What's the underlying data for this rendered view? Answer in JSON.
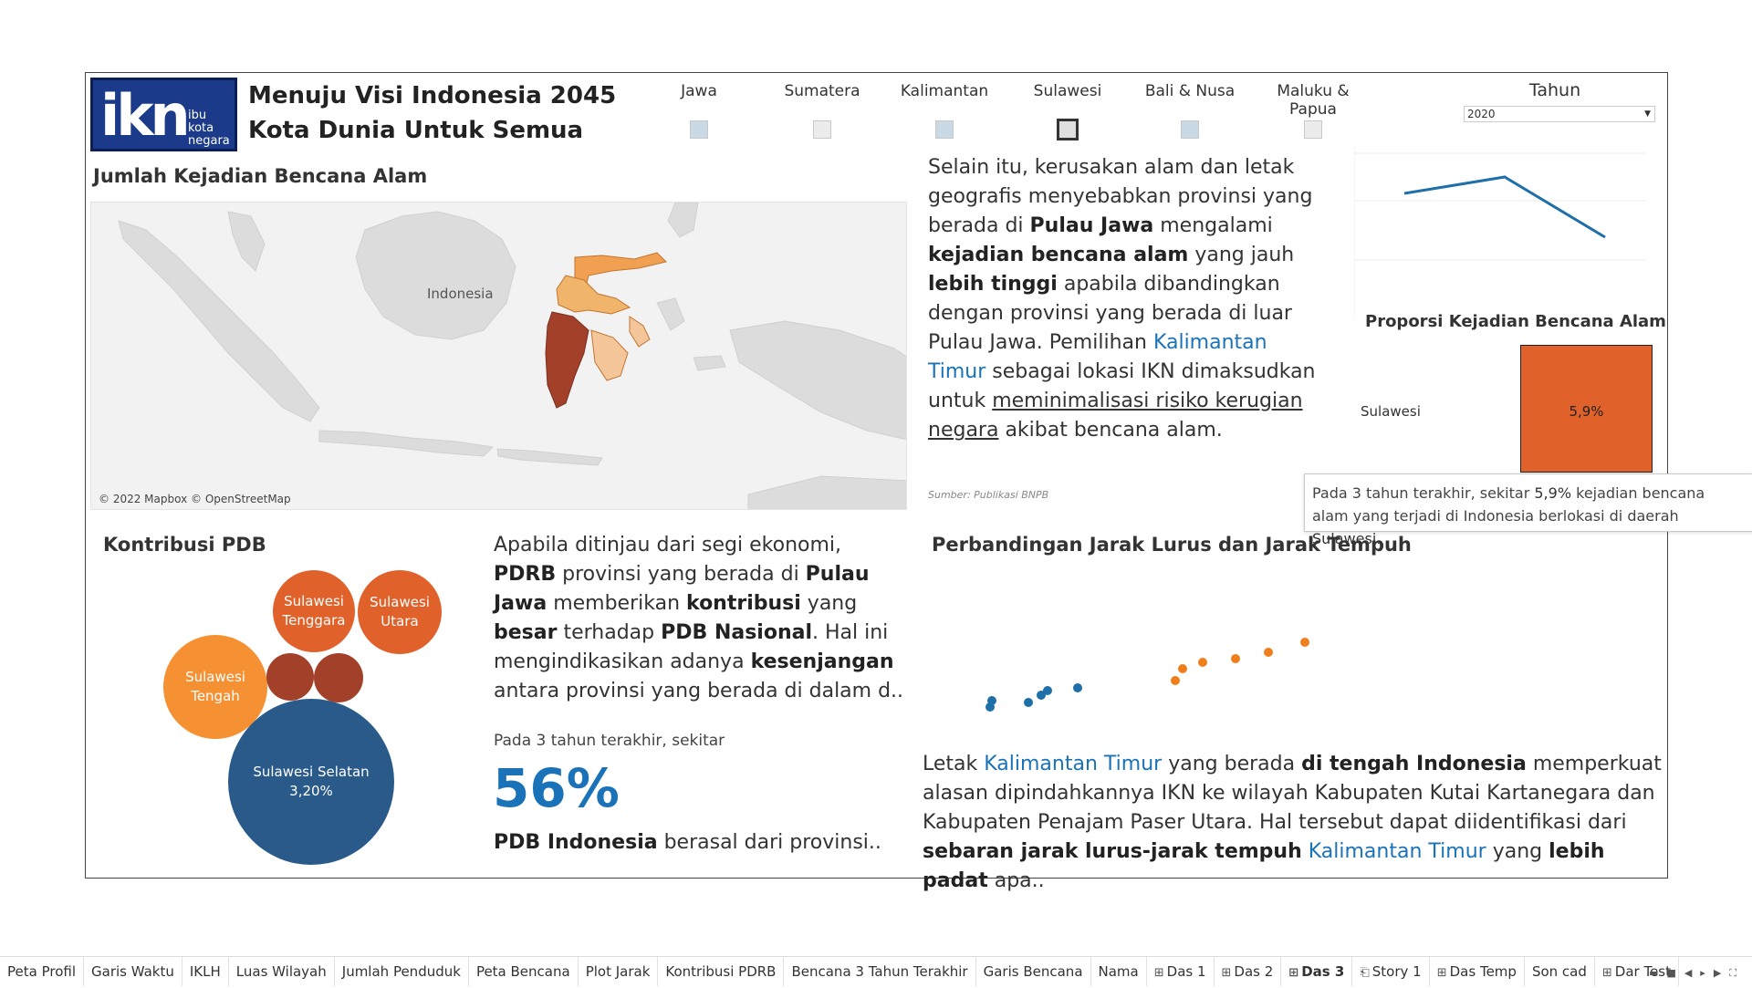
{
  "header": {
    "logo_big": "ikn",
    "logo_small": [
      "ibu",
      "kota",
      "negara"
    ],
    "title_line1": "Menuju Visi Indonesia 2045",
    "title_line2": "Kota Dunia Untuk Semua"
  },
  "filters": [
    {
      "label": "Jawa",
      "color": "#c9d9e6",
      "selected": false
    },
    {
      "label": "Sumatera",
      "color": "#ececec",
      "selected": false
    },
    {
      "label": "Kalimantan",
      "color": "#c9d9e6",
      "selected": false
    },
    {
      "label": "Sulawesi",
      "color": "#e0e0e0",
      "selected": true
    },
    {
      "label": "Bali & Nusa",
      "color": "#c9d9e6",
      "selected": false
    },
    {
      "label": "Maluku & Papua",
      "color": "#ececec",
      "selected": false
    }
  ],
  "tahun": {
    "label": "Tahun",
    "value": "2020"
  },
  "map_section": {
    "title": "Jumlah Kejadian Bencana Alam",
    "country_label": "Indonesia",
    "credit": "© 2022 Mapbox © OpenStreetMap"
  },
  "narrative1": {
    "p1": "Selain itu, kerusakan alam dan letak geografis menyebabkan provinsi yang berada di ",
    "b1": "Pulau Jawa",
    "p2": " mengalami ",
    "b2": "kejadian bencana alam",
    "p3": "  yang jauh ",
    "b3": "lebih tinggi",
    "p4": " apabila dibandingkan dengan provinsi yang berada di luar Pulau Jawa. Pemilihan ",
    "link1": "Kalimantan Timur",
    "p5": " sebagai lokasi IKN dimaksudkan untuk ",
    "u1": "meminimalisasi risiko kerugian negara",
    "p6": " akibat bencana alam."
  },
  "source": "Sumber: Publikasi BNPB",
  "proporsi": {
    "title": "Proporsi Kejadian Bencana Alam",
    "category": "Sulawesi",
    "value_label": "5,9%",
    "value": 5.9,
    "color": "#e0612a"
  },
  "tooltip": {
    "t1": "Pada 3 tahun terakhir, sekitar ",
    "b1": "5,9%",
    "t2": " kejadian bencana alam yang terjadi di Indonesia berlokasi di daerah ",
    "b2": "Sulawesi",
    "t3": "."
  },
  "pdb_section": {
    "title": "Kontribusi PDB",
    "bubbles": [
      {
        "label": "Sulawesi Tenggara",
        "color": "#e0612a"
      },
      {
        "label": "Sulawesi Utara",
        "color": "#e0612a"
      },
      {
        "label": "Sulawesi Tengah",
        "color": "#f59133"
      },
      {
        "label": "",
        "color": "#a3402a"
      },
      {
        "label": "",
        "color": "#a3402a"
      },
      {
        "label": "Sulawesi Selatan",
        "value": "3,20%",
        "color": "#2a5a8a"
      }
    ]
  },
  "narrative2": {
    "p1": "Apabila ditinjau dari segi ekonomi, ",
    "b1": "PDRB",
    "p2": " provinsi yang berada di ",
    "b2": "Pulau Jawa",
    "p3": " memberikan ",
    "b3": "kontribusi",
    "p4": " yang ",
    "b4": "besar",
    "p5": " terhadap ",
    "b5": "PDB Nasional",
    "p6": ". Hal ini mengindikasikan adanya ",
    "b6": "kesenjangan",
    "p7": " antara provinsi yang berada di dalam d.."
  },
  "pdb_stat": {
    "caption": "Pada 3 tahun terakhir, sekitar",
    "value": "56%",
    "bold": "PDB Indonesia",
    "rest": " berasal dari provinsi.."
  },
  "jarak_section": {
    "title": "Perbandingan Jarak Lurus dan Jarak Tempuh"
  },
  "narrative3": {
    "p1": "Letak ",
    "link1": "Kalimantan Timur",
    "p2": " yang berada ",
    "b1": "di tengah Indonesia",
    "p3": " memperkuat alasan dipindahkannya IKN ke wilayah Kabupaten Kutai Kartanegara dan Kabupaten Penajam Paser Utara. Hal tersebut dapat diidentifikasi dari ",
    "b2": "sebaran jarak lurus-jarak tempuh",
    "p4": " ",
    "link2": "Kalimantan Timur",
    "p5": " yang ",
    "b3": "lebih padat",
    "p6": " apa.."
  },
  "tabs": [
    {
      "label": "Peta Profil"
    },
    {
      "label": "Garis Waktu"
    },
    {
      "label": "IKLH"
    },
    {
      "label": "Luas Wilayah"
    },
    {
      "label": "Jumlah Penduduk"
    },
    {
      "label": "Peta Bencana"
    },
    {
      "label": "Plot Jarak"
    },
    {
      "label": "Kontribusi PDRB"
    },
    {
      "label": "Bencana 3 Tahun Terakhir"
    },
    {
      "label": "Garis Bencana"
    },
    {
      "label": "Nama"
    },
    {
      "label": "Das 1",
      "icon": "dashboard-icon"
    },
    {
      "label": "Das 2",
      "icon": "dashboard-icon"
    },
    {
      "label": "Das 3",
      "icon": "dashboard-icon",
      "active": true
    },
    {
      "label": "Story 1",
      "icon": "story-icon"
    },
    {
      "label": "Das Temp",
      "icon": "dashboard-icon"
    },
    {
      "label": "Son cad"
    },
    {
      "label": "Dar Test",
      "icon": "dashboard-icon"
    }
  ]
}
